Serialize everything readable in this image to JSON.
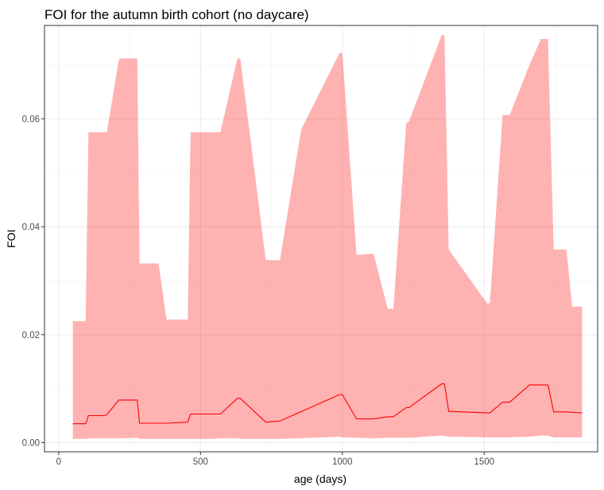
{
  "chart_data": {
    "type": "area",
    "title": "FOI for the autumn birth cohort (no daycare)",
    "xlabel": "age (days)",
    "ylabel": "FOI",
    "xlim": [
      -50,
      1900
    ],
    "ylim": [
      -0.0017,
      0.0773
    ],
    "x_ticks": [
      0,
      500,
      1000,
      1500
    ],
    "x_tick_labels": [
      "0",
      "500",
      "1000",
      "1500"
    ],
    "y_ticks": [
      0.0,
      0.02,
      0.04,
      0.06
    ],
    "y_tick_labels": [
      "0.00",
      "0.02",
      "0.04",
      "0.06"
    ],
    "grid": true,
    "colors": {
      "ribbon": "#ff0000",
      "ribbon_opacity": 0.3,
      "line": "#ff0000"
    },
    "ribbon": {
      "x": [
        50,
        95,
        105,
        160,
        170,
        212,
        220,
        277,
        285,
        352,
        380,
        455,
        465,
        540,
        570,
        630,
        640,
        730,
        780,
        855,
        990,
        1000,
        1050,
        1110,
        1160,
        1175,
        1180,
        1225,
        1235,
        1350,
        1360,
        1375,
        1510,
        1520,
        1565,
        1590,
        1660,
        1700,
        1725,
        1745,
        1790,
        1810,
        1845
      ],
      "lower": [
        0.0007,
        0.0007,
        0.0008,
        0.0008,
        0.0008,
        0.0008,
        0.0008,
        0.0009,
        0.0007,
        0.0007,
        0.0007,
        0.0007,
        0.0007,
        0.0007,
        0.0008,
        0.0008,
        0.0007,
        0.0007,
        0.0007,
        0.0008,
        0.0011,
        0.001,
        0.0009,
        0.0008,
        0.0009,
        0.0009,
        0.0009,
        0.0009,
        0.0009,
        0.0013,
        0.0012,
        0.0011,
        0.001,
        0.001,
        0.001,
        0.001,
        0.0011,
        0.0013,
        0.0013,
        0.001,
        0.001,
        0.001,
        0.001
      ],
      "upper": [
        0.0225,
        0.0225,
        0.0575,
        0.0575,
        0.0575,
        0.071,
        0.0712,
        0.0712,
        0.0332,
        0.0332,
        0.0228,
        0.0228,
        0.0575,
        0.0575,
        0.0575,
        0.0712,
        0.0712,
        0.0338,
        0.0338,
        0.058,
        0.0722,
        0.0722,
        0.0348,
        0.035,
        0.0248,
        0.0248,
        0.0247,
        0.0592,
        0.0595,
        0.0755,
        0.0755,
        0.0358,
        0.0258,
        0.0258,
        0.0607,
        0.0607,
        0.07,
        0.0748,
        0.0748,
        0.0358,
        0.0358,
        0.0252,
        0.0252
      ]
    },
    "series": [
      {
        "x": [
          50,
          95,
          105,
          160,
          170,
          212,
          220,
          277,
          285,
          352,
          380,
          455,
          465,
          540,
          570,
          630,
          640,
          730,
          780,
          990,
          1000,
          1050,
          1110,
          1160,
          1175,
          1180,
          1225,
          1235,
          1350,
          1360,
          1375,
          1510,
          1520,
          1565,
          1590,
          1660,
          1700,
          1725,
          1745,
          1790,
          1810,
          1845
        ],
        "values": [
          0.0035,
          0.0035,
          0.005,
          0.005,
          0.0052,
          0.0079,
          0.0079,
          0.0079,
          0.0036,
          0.0036,
          0.0036,
          0.0038,
          0.0053,
          0.0053,
          0.0053,
          0.0082,
          0.0082,
          0.0038,
          0.004,
          0.0089,
          0.0089,
          0.0044,
          0.0044,
          0.0048,
          0.0048,
          0.0048,
          0.0065,
          0.0065,
          0.0109,
          0.0109,
          0.0058,
          0.0055,
          0.0055,
          0.0075,
          0.0075,
          0.0107,
          0.0107,
          0.0107,
          0.0057,
          0.0057,
          0.0056,
          0.0055
        ]
      }
    ]
  }
}
